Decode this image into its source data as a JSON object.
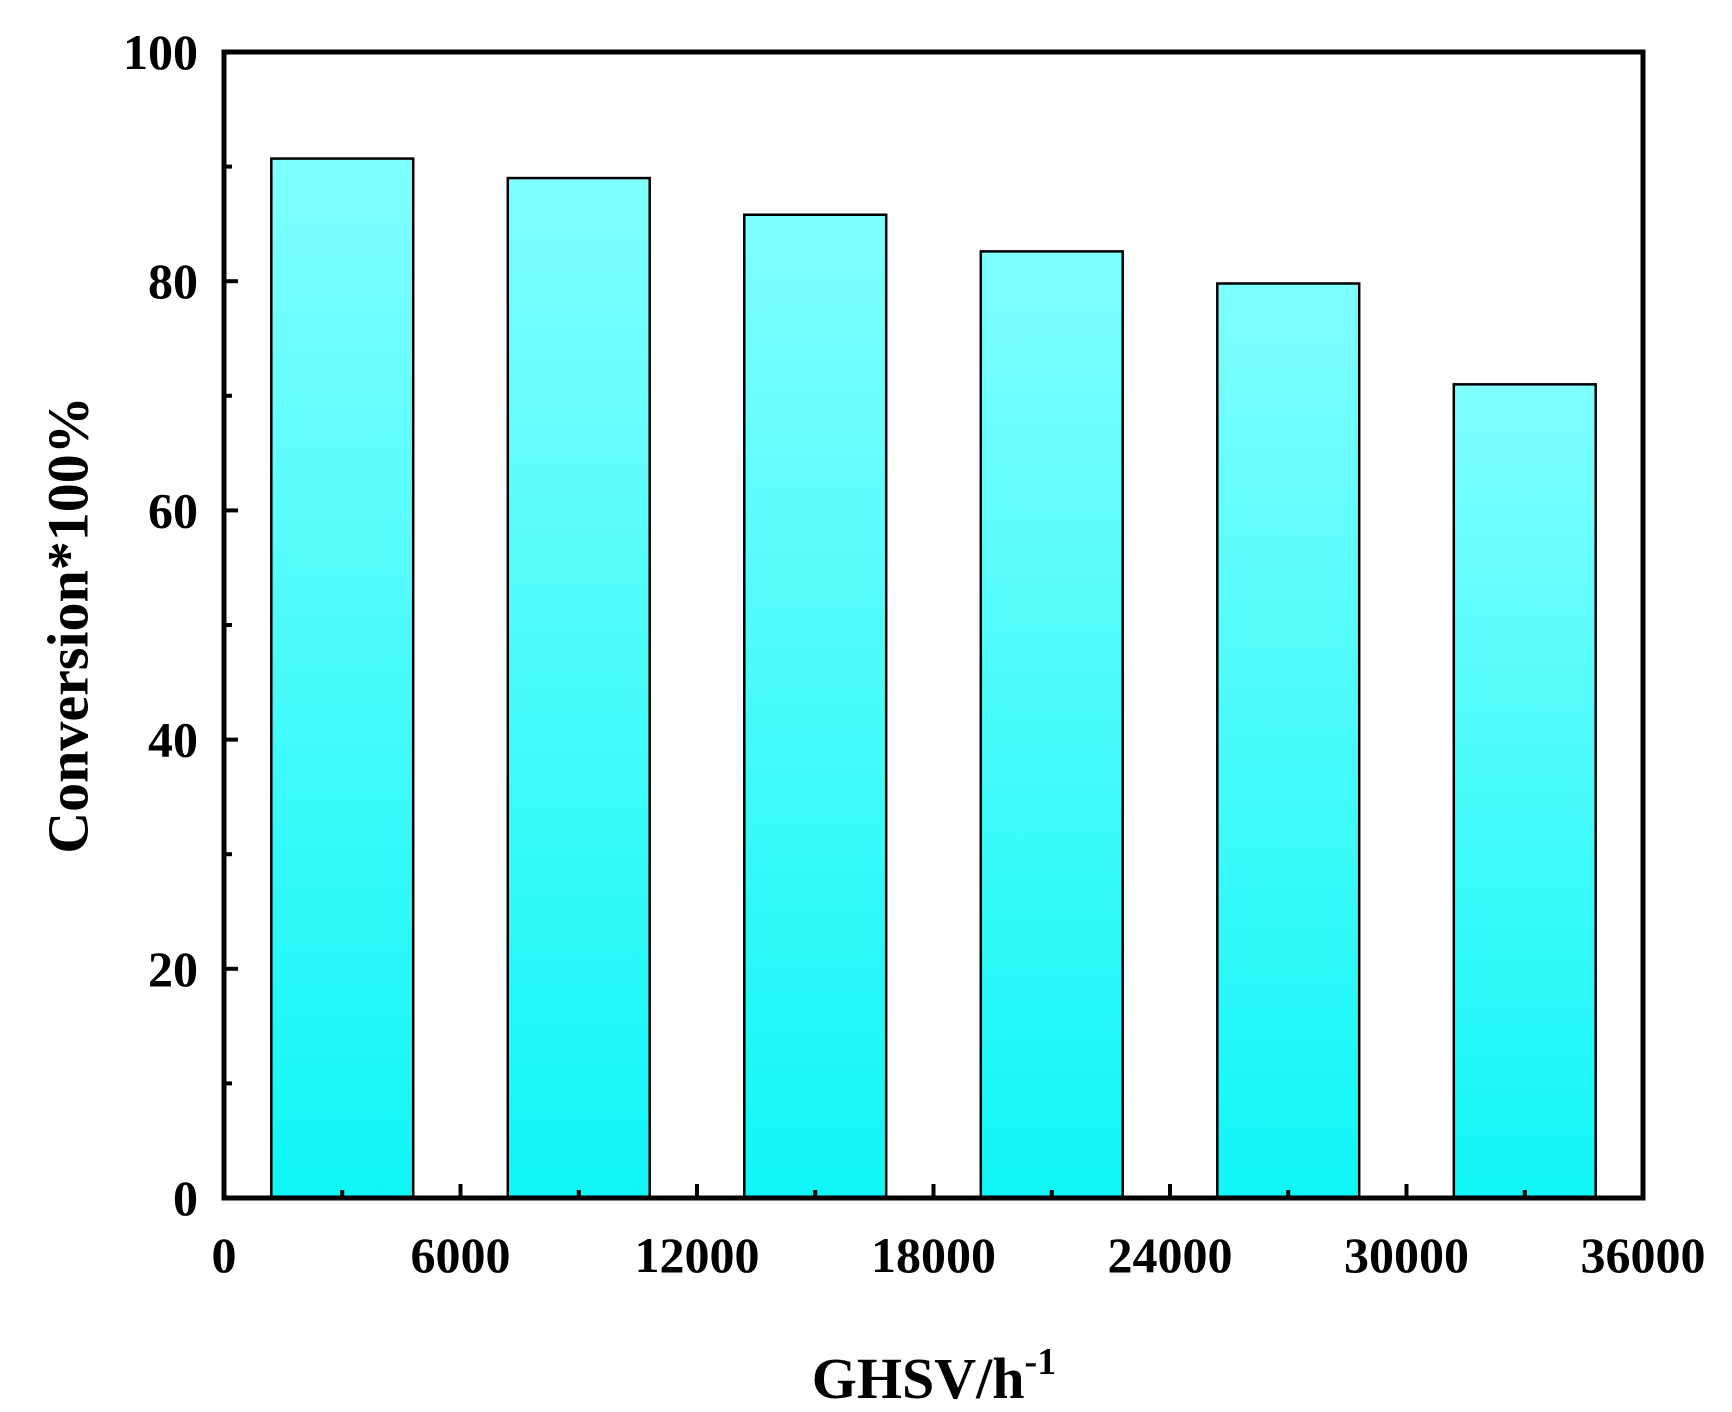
{
  "chart_data": {
    "type": "bar",
    "title": "",
    "xlabel": "GHSV/h",
    "xlabel_superscript": "-1",
    "ylabel": "Conversion*100%",
    "xlim": [
      0,
      36000
    ],
    "ylim": [
      0,
      100
    ],
    "x_ticks": [
      0,
      6000,
      12000,
      18000,
      24000,
      30000,
      36000
    ],
    "x_tick_labels": [
      "0",
      "6000",
      "12000",
      "18000",
      "24000",
      "30000",
      "36000"
    ],
    "y_ticks": [
      0,
      20,
      40,
      60,
      80,
      100
    ],
    "y_tick_labels": [
      "0",
      "20",
      "40",
      "60",
      "80",
      "100"
    ],
    "bar_x_ranges": [
      [
        1200,
        4800
      ],
      [
        7200,
        10800
      ],
      [
        13200,
        16800
      ],
      [
        19200,
        22800
      ],
      [
        25200,
        28800
      ],
      [
        31200,
        34800
      ]
    ],
    "values": [
      90.7,
      89.0,
      85.8,
      82.6,
      79.8,
      71.0
    ],
    "grid": false,
    "legend": "none",
    "colors": {
      "bar_top": "#80ffff",
      "bar_bottom": "#10f6f6",
      "bar_edge": "#000000",
      "axis": "#000000"
    }
  }
}
